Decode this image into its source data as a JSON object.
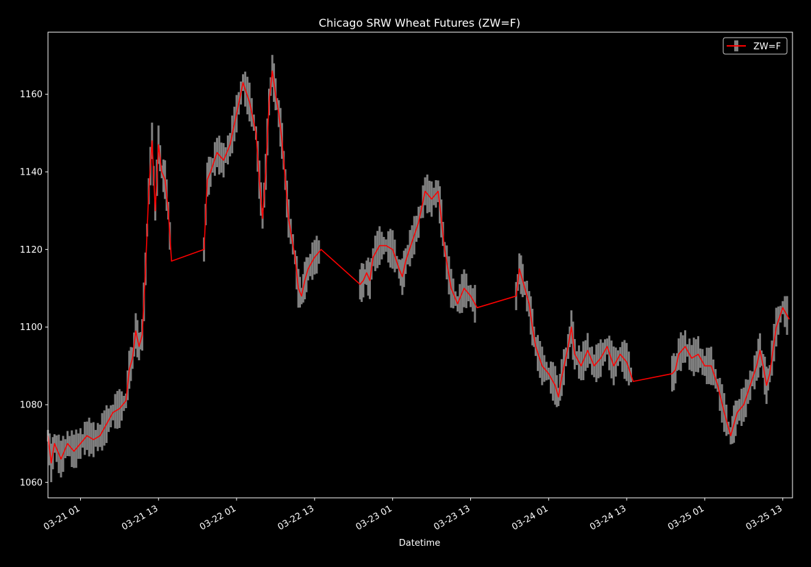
{
  "chart_data": {
    "type": "line",
    "title": "Chicago SRW Wheat Futures (ZW=F)",
    "xlabel": "Datetime",
    "ylabel": "",
    "x_unit": "datetime (MM-DD HH)",
    "xlim": [
      "03-20 20:00",
      "03-25 14:30"
    ],
    "ylim": [
      1056,
      1176
    ],
    "y_ticks": [
      1060,
      1080,
      1100,
      1120,
      1140,
      1160
    ],
    "x_ticks": [
      {
        "at": "03-21 01:00",
        "label": "03-21 01"
      },
      {
        "at": "03-21 13:00",
        "label": "03-21 13"
      },
      {
        "at": "03-22 01:00",
        "label": "03-22 01"
      },
      {
        "at": "03-22 13:00",
        "label": "03-22 13"
      },
      {
        "at": "03-23 01:00",
        "label": "03-23 01"
      },
      {
        "at": "03-23 13:00",
        "label": "03-23 13"
      },
      {
        "at": "03-24 01:00",
        "label": "03-24 01"
      },
      {
        "at": "03-24 13:00",
        "label": "03-24 13"
      },
      {
        "at": "03-25 01:00",
        "label": "03-25 01"
      },
      {
        "at": "03-25 13:00",
        "label": "03-25 13"
      }
    ],
    "legend": {
      "position": "top-right",
      "entries": [
        "ZW=F"
      ]
    },
    "grid": false,
    "colors": {
      "background": "#000000",
      "line": "#ff0000",
      "range": "#808080",
      "axis": "#ffffff"
    },
    "series": [
      {
        "name": "ZW=F",
        "points": [
          [
            "03-20 20:00",
            1072
          ],
          [
            "03-20 20:30",
            1065
          ],
          [
            "03-20 21:00",
            1070
          ],
          [
            "03-20 22:00",
            1066
          ],
          [
            "03-20 23:00",
            1070
          ],
          [
            "03-21 00:00",
            1068
          ],
          [
            "03-21 01:00",
            1070
          ],
          [
            "03-21 02:00",
            1072
          ],
          [
            "03-21 03:00",
            1071
          ],
          [
            "03-21 04:00",
            1072
          ],
          [
            "03-21 05:00",
            1075
          ],
          [
            "03-21 06:00",
            1078
          ],
          [
            "03-21 07:00",
            1079
          ],
          [
            "03-21 08:00",
            1081
          ],
          [
            "03-21 08:30",
            1089
          ],
          [
            "03-21 09:00",
            1092
          ],
          [
            "03-21 09:30",
            1099
          ],
          [
            "03-21 10:00",
            1095
          ],
          [
            "03-21 10:30",
            1098
          ],
          [
            "03-21 11:00",
            1115
          ],
          [
            "03-21 11:30",
            1135
          ],
          [
            "03-21 12:00",
            1148
          ],
          [
            "03-21 12:30",
            1130
          ],
          [
            "03-21 13:00",
            1147
          ],
          [
            "03-21 13:30",
            1140
          ],
          [
            "03-21 14:00",
            1138
          ],
          [
            "03-21 14:30",
            1130
          ],
          [
            "03-21 15:00",
            1117
          ],
          [
            "03-21 20:00",
            1120
          ],
          [
            "03-21 20:30",
            1138
          ],
          [
            "03-21 21:00",
            1140
          ],
          [
            "03-21 22:00",
            1145
          ],
          [
            "03-21 23:00",
            1143
          ],
          [
            "03-22 00:00",
            1147
          ],
          [
            "03-22 01:00",
            1155
          ],
          [
            "03-22 02:00",
            1163
          ],
          [
            "03-22 03:00",
            1158
          ],
          [
            "03-22 04:00",
            1150
          ],
          [
            "03-22 04:30",
            1138
          ],
          [
            "03-22 05:00",
            1128
          ],
          [
            "03-22 05:30",
            1140
          ],
          [
            "03-22 06:00",
            1158
          ],
          [
            "03-22 06:30",
            1166
          ],
          [
            "03-22 07:00",
            1160
          ],
          [
            "03-22 07:30",
            1155
          ],
          [
            "03-22 08:00",
            1148
          ],
          [
            "03-22 08:30",
            1138
          ],
          [
            "03-22 09:00",
            1128
          ],
          [
            "03-22 10:00",
            1118
          ],
          [
            "03-22 10:30",
            1110
          ],
          [
            "03-22 11:00",
            1108
          ],
          [
            "03-22 11:30",
            1112
          ],
          [
            "03-22 12:00",
            1115
          ],
          [
            "03-22 13:00",
            1118
          ],
          [
            "03-22 14:00",
            1120
          ],
          [
            "03-22 20:00",
            1111
          ],
          [
            "03-22 20:30",
            1112
          ],
          [
            "03-22 21:00",
            1114
          ],
          [
            "03-22 21:30",
            1112
          ],
          [
            "03-22 22:00",
            1118
          ],
          [
            "03-22 23:00",
            1121
          ],
          [
            "03-23 00:00",
            1121
          ],
          [
            "03-23 01:00",
            1120
          ],
          [
            "03-23 02:00",
            1115
          ],
          [
            "03-23 02:30",
            1113
          ],
          [
            "03-23 03:00",
            1117
          ],
          [
            "03-23 04:00",
            1122
          ],
          [
            "03-23 05:00",
            1127
          ],
          [
            "03-23 06:00",
            1135
          ],
          [
            "03-23 07:00",
            1133
          ],
          [
            "03-23 08:00",
            1135
          ],
          [
            "03-23 08:30",
            1128
          ],
          [
            "03-23 09:00",
            1120
          ],
          [
            "03-23 10:00",
            1110
          ],
          [
            "03-23 11:00",
            1106
          ],
          [
            "03-23 12:00",
            1110
          ],
          [
            "03-23 13:00",
            1108
          ],
          [
            "03-23 14:00",
            1105
          ],
          [
            "03-23 20:00",
            1108
          ],
          [
            "03-23 20:30",
            1115
          ],
          [
            "03-23 21:00",
            1112
          ],
          [
            "03-23 22:00",
            1106
          ],
          [
            "03-23 22:30",
            1100
          ],
          [
            "03-23 23:00",
            1095
          ],
          [
            "03-24 00:00",
            1090
          ],
          [
            "03-24 01:00",
            1088
          ],
          [
            "03-24 02:00",
            1085
          ],
          [
            "03-24 02:30",
            1082
          ],
          [
            "03-24 03:00",
            1087
          ],
          [
            "03-24 04:00",
            1095
          ],
          [
            "03-24 04:30",
            1100
          ],
          [
            "03-24 05:00",
            1093
          ],
          [
            "03-24 06:00",
            1090
          ],
          [
            "03-24 07:00",
            1094
          ],
          [
            "03-24 08:00",
            1090
          ],
          [
            "03-24 09:00",
            1092
          ],
          [
            "03-24 10:00",
            1095
          ],
          [
            "03-24 11:00",
            1090
          ],
          [
            "03-24 12:00",
            1093
          ],
          [
            "03-24 13:00",
            1091
          ],
          [
            "03-24 14:00",
            1086
          ],
          [
            "03-24 20:00",
            1088
          ],
          [
            "03-24 20:30",
            1089
          ],
          [
            "03-24 21:00",
            1093
          ],
          [
            "03-24 22:00",
            1095
          ],
          [
            "03-24 23:00",
            1092
          ],
          [
            "03-25 00:00",
            1093
          ],
          [
            "03-25 01:00",
            1090
          ],
          [
            "03-25 02:00",
            1090
          ],
          [
            "03-25 03:00",
            1085
          ],
          [
            "03-25 04:00",
            1078
          ],
          [
            "03-25 05:00",
            1072
          ],
          [
            "03-25 05:30",
            1075
          ],
          [
            "03-25 06:00",
            1078
          ],
          [
            "03-25 07:00",
            1080
          ],
          [
            "03-25 08:00",
            1085
          ],
          [
            "03-25 09:00",
            1090
          ],
          [
            "03-25 09:30",
            1094
          ],
          [
            "03-25 10:00",
            1090
          ],
          [
            "03-25 10:30",
            1085
          ],
          [
            "03-25 11:00",
            1088
          ],
          [
            "03-25 12:00",
            1100
          ],
          [
            "03-25 13:00",
            1105
          ],
          [
            "03-25 14:00",
            1102
          ]
        ]
      }
    ]
  }
}
